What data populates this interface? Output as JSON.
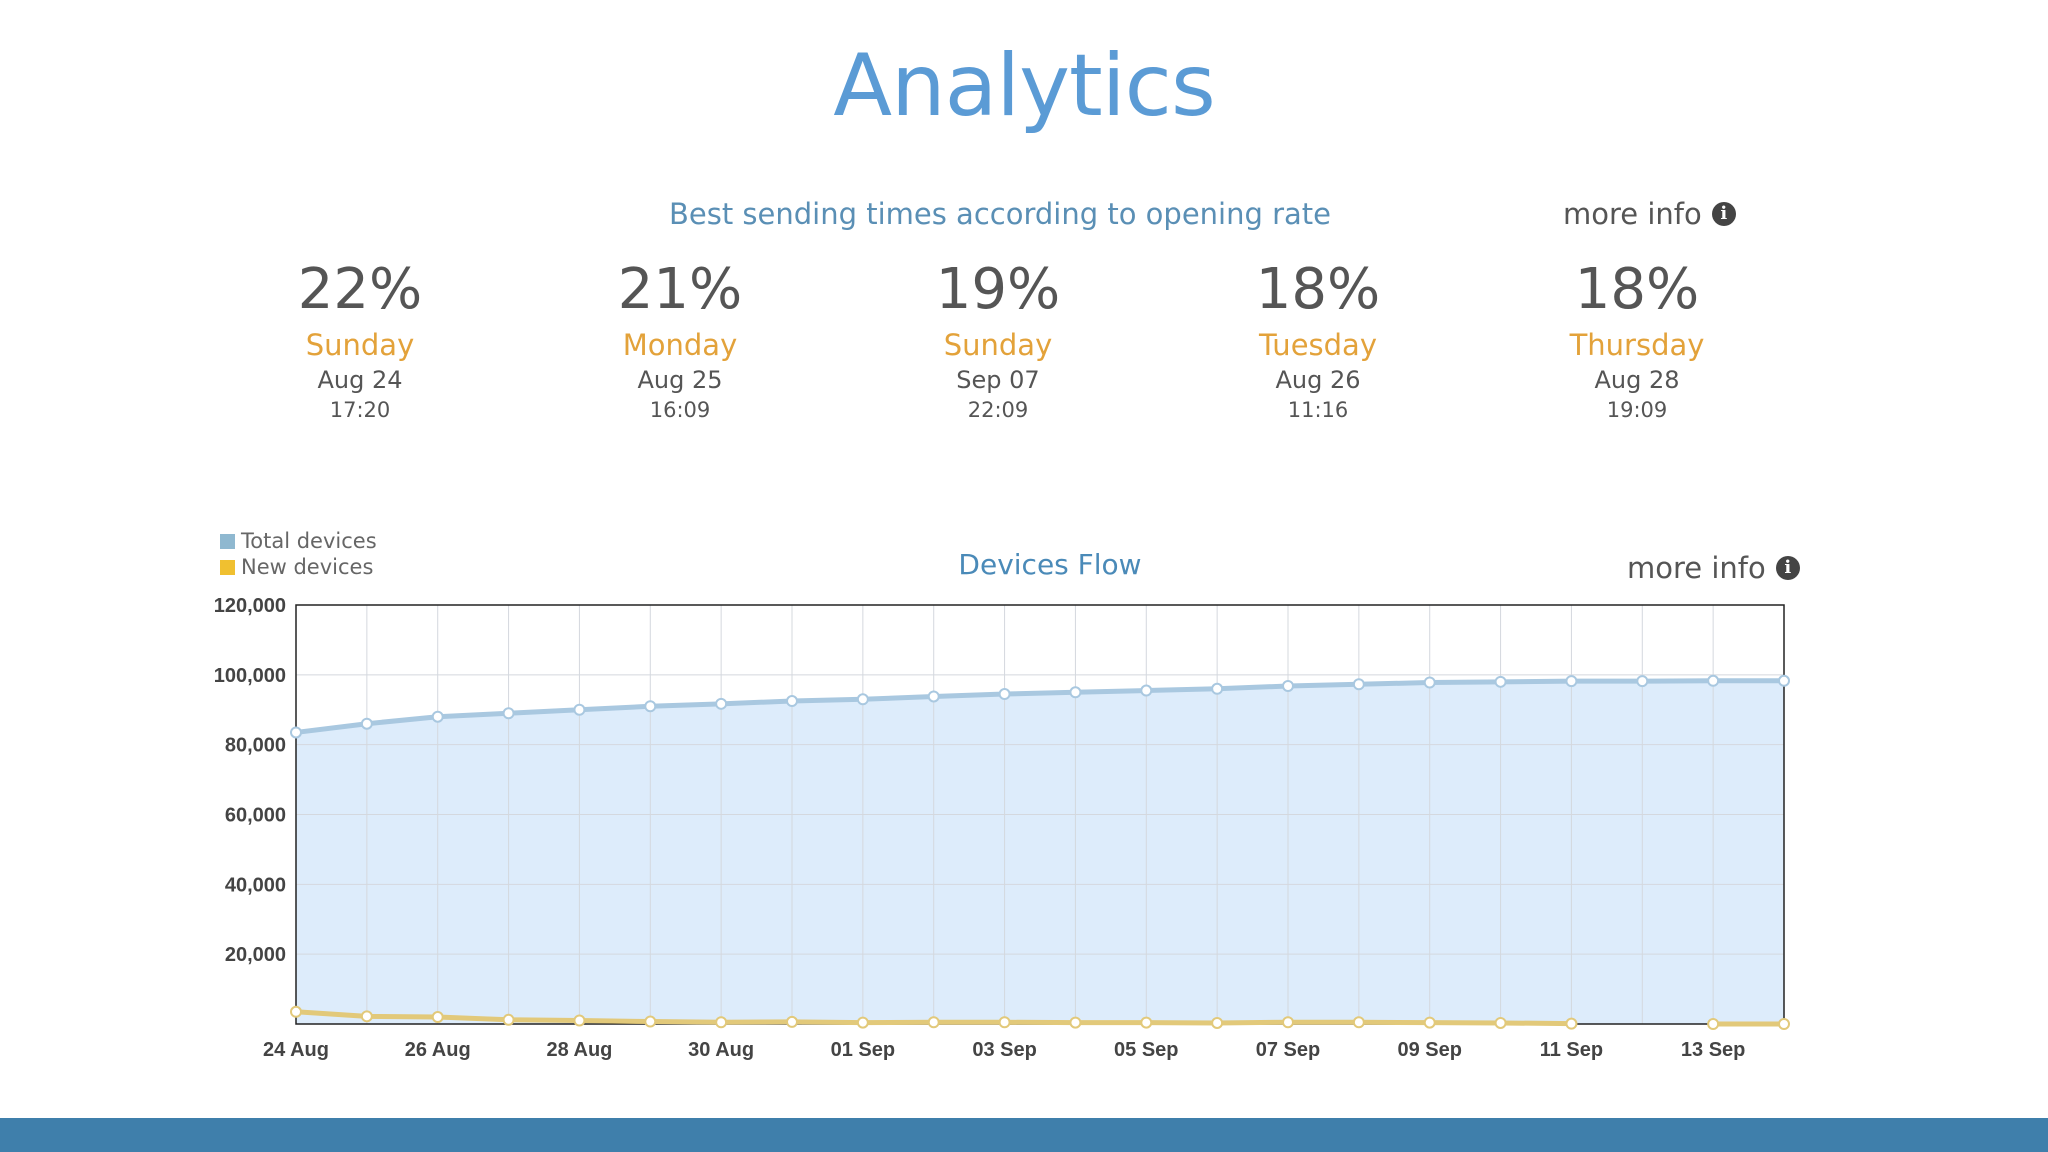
{
  "title": "Analytics",
  "best_sending": {
    "heading": "Best sending times according to opening rate",
    "more_info": "more info",
    "items": [
      {
        "pct": "22%",
        "day": "Sunday",
        "date": "Aug 24",
        "time": "17:20"
      },
      {
        "pct": "21%",
        "day": "Monday",
        "date": "Aug 25",
        "time": "16:09"
      },
      {
        "pct": "19%",
        "day": "Sunday",
        "date": "Sep 07",
        "time": "22:09"
      },
      {
        "pct": "18%",
        "day": "Tuesday",
        "date": "Aug 26",
        "time": "11:16"
      },
      {
        "pct": "18%",
        "day": "Thursday",
        "date": "Aug 28",
        "time": "19:09"
      }
    ]
  },
  "devices_flow": {
    "title": "Devices Flow",
    "more_info": "more info"
  },
  "colors": {
    "title": "#5b9bd5",
    "day": "#e3a23a",
    "total_swatch": "#8fb8d0",
    "total_line": "#a9c8e0",
    "total_fill": "#ddecfb",
    "new_swatch": "#f0c030",
    "new_line": "#e2c97a",
    "footer": "#3f7fab"
  },
  "chart_data": {
    "type": "area",
    "title": "Devices Flow",
    "xlabel": "",
    "ylabel": "",
    "x": [
      "24 Aug",
      "25 Aug",
      "26 Aug",
      "27 Aug",
      "28 Aug",
      "29 Aug",
      "30 Aug",
      "31 Aug",
      "01 Sep",
      "02 Sep",
      "03 Sep",
      "04 Sep",
      "05 Sep",
      "06 Sep",
      "07 Sep",
      "08 Sep",
      "09 Sep",
      "10 Sep",
      "11 Sep",
      "12 Sep",
      "13 Sep",
      "14 Sep"
    ],
    "x_tick_labels": [
      "24 Aug",
      "26 Aug",
      "28 Aug",
      "30 Aug",
      "01 Sep",
      "03 Sep",
      "05 Sep",
      "07 Sep",
      "09 Sep",
      "11 Sep",
      "13 Sep"
    ],
    "y_ticks": [
      "20,000",
      "40,000",
      "60,000",
      "80,000",
      "100,000",
      "120,000"
    ],
    "ylim": [
      0,
      120000
    ],
    "grid": true,
    "legend_position": "top-left",
    "series": [
      {
        "name": "Total devices",
        "values": [
          83500,
          86000,
          88000,
          89000,
          90000,
          91000,
          91700,
          92500,
          93000,
          93800,
          94500,
          95000,
          95500,
          96000,
          96800,
          97300,
          97800,
          98000,
          98200,
          98200,
          98300,
          98300
        ]
      },
      {
        "name": "New devices",
        "values": [
          3500,
          2200,
          2000,
          1200,
          1000,
          700,
          500,
          600,
          400,
          500,
          500,
          400,
          400,
          300,
          500,
          500,
          400,
          300,
          100,
          null,
          0,
          0
        ]
      }
    ]
  }
}
